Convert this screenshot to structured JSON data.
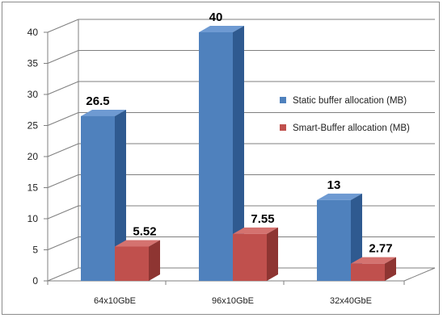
{
  "chart_data": {
    "type": "bar",
    "categories": [
      "64x10GbE",
      "96x10GbE",
      "32x40GbE"
    ],
    "series": [
      {
        "name": "Static buffer allocation (MB)",
        "values": [
          26.5,
          40,
          13
        ],
        "labels": [
          "26.5",
          "40",
          "13"
        ]
      },
      {
        "name": "Smart-Buffer allocation (MB)",
        "values": [
          5.52,
          7.55,
          2.77
        ],
        "labels": [
          "5.52",
          "7.55",
          "2.77"
        ]
      }
    ],
    "title": "",
    "xlabel": "",
    "ylabel": "",
    "ylim": [
      0,
      40
    ],
    "yticks": [
      "0",
      "5",
      "10",
      "15",
      "20",
      "25",
      "30",
      "35",
      "40"
    ],
    "grid": true,
    "legend_position": "right",
    "style": "3d-clustered-column",
    "colors": {
      "static_front": "#4f81bd",
      "static_top": "#6e9ad2",
      "static_side": "#2f5a90",
      "smart_front": "#c0504d",
      "smart_top": "#d4726f",
      "smart_side": "#8e3532",
      "grid": "#7f7f7f",
      "floor": "#ffffff"
    }
  }
}
